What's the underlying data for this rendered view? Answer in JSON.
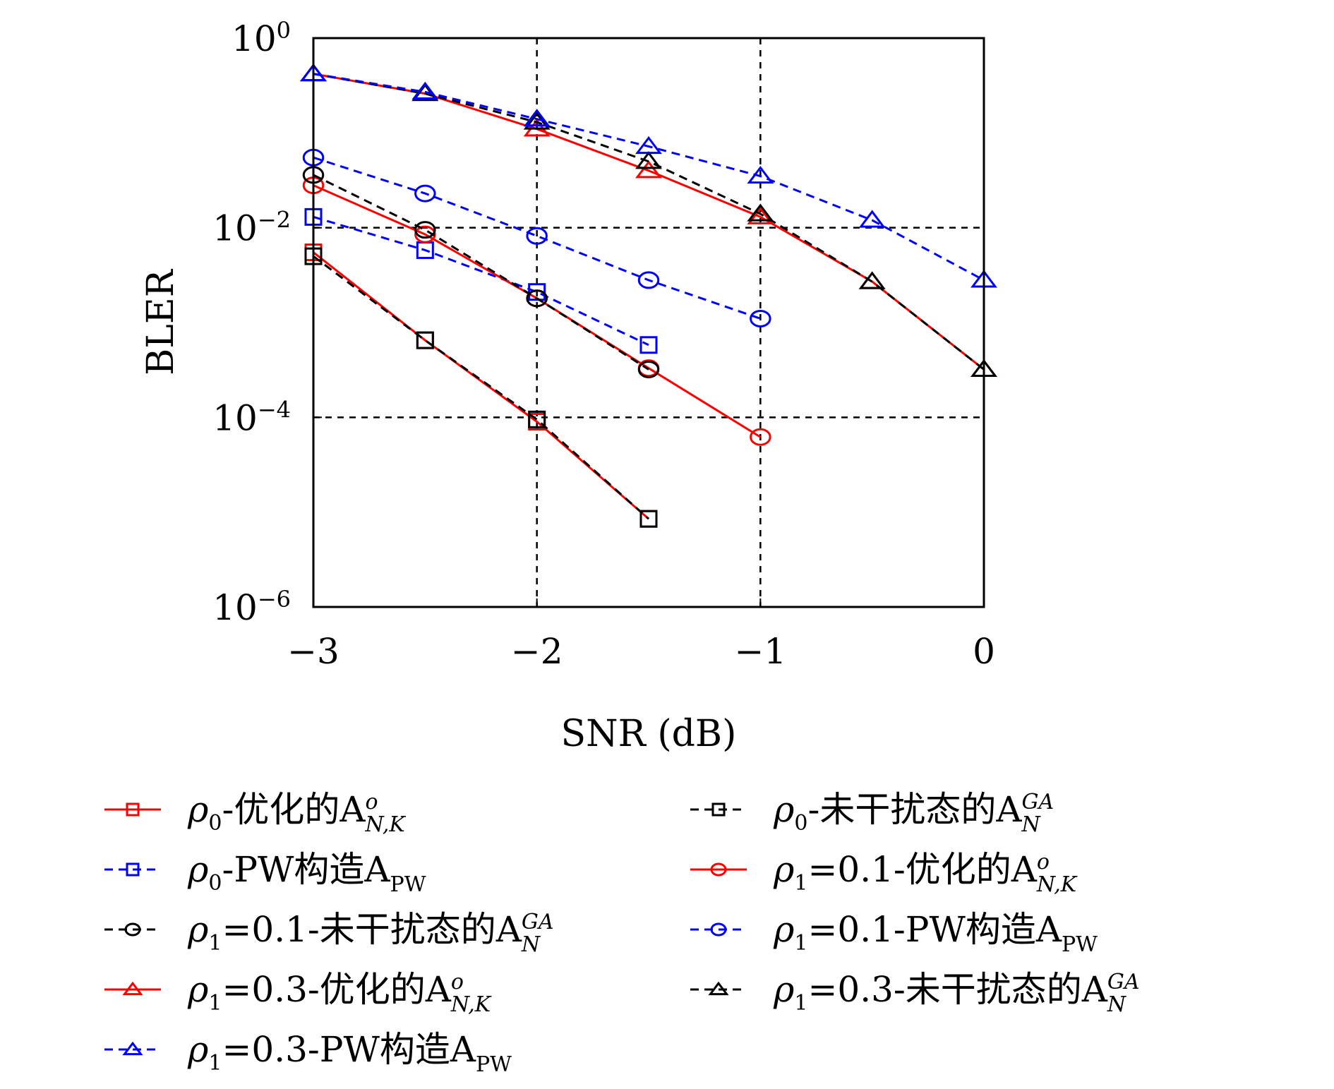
{
  "chart_data": {
    "type": "line",
    "xlabel": "SNR (dB)",
    "ylabel": "BLER",
    "x_scale": "linear",
    "y_scale": "log",
    "xlim": [
      -3,
      0
    ],
    "ylim": [
      1e-06,
      1
    ],
    "x_ticks": [
      {
        "value": -3,
        "label": "−3"
      },
      {
        "value": -2,
        "label": "−2"
      },
      {
        "value": -1,
        "label": "−1"
      },
      {
        "value": 0,
        "label": "0"
      }
    ],
    "y_ticks": [
      {
        "value": 1,
        "base": "10",
        "exp": "0"
      },
      {
        "value": 0.01,
        "base": "10",
        "exp": "−2"
      },
      {
        "value": 0.0001,
        "base": "10",
        "exp": "−4"
      },
      {
        "value": 1e-06,
        "base": "10",
        "exp": "−6"
      }
    ],
    "grid": {
      "x": [
        -2,
        -1
      ],
      "y": [
        0.01,
        0.0001
      ],
      "style": "dashed"
    },
    "legend_position": "below",
    "series": [
      {
        "key": "s1",
        "color": "#ff0000",
        "dash": false,
        "marker": "square",
        "label": {
          "main": "ρ",
          "sub0": "0",
          "rest": "-优化的A",
          "sup": "o",
          "sub": "N,K"
        },
        "x": [
          -3,
          -2.5,
          -2,
          -1.5
        ],
        "y": [
          0.0055,
          0.00065,
          9e-05,
          8.5e-06
        ]
      },
      {
        "key": "s2",
        "color": "#000000",
        "dash": true,
        "marker": "square",
        "label": {
          "main": "ρ",
          "sub0": "0",
          "rest": "-未干扰态的A",
          "sup": "GA",
          "sub": "N"
        },
        "x": [
          -3,
          -2.5,
          -2,
          -1.5
        ],
        "y": [
          0.005,
          0.00065,
          9.5e-05,
          8.5e-06
        ]
      },
      {
        "key": "s3",
        "color": "#0000ff",
        "dash": true,
        "marker": "square",
        "label": {
          "main": "ρ",
          "sub0": "0",
          "rest": "-PW构造A",
          "sup": "",
          "sub": "PW"
        },
        "x": [
          -3,
          -2.5,
          -2,
          -1.5
        ],
        "y": [
          0.013,
          0.0058,
          0.0021,
          0.00058
        ]
      },
      {
        "key": "s4",
        "color": "#ff0000",
        "dash": false,
        "marker": "circle",
        "label": {
          "main": "ρ",
          "sub0": "1",
          "rest": "=0.1-优化的A",
          "sup": "o",
          "sub": "N,K"
        },
        "x": [
          -3,
          -2.5,
          -2,
          -1.5,
          -1
        ],
        "y": [
          0.028,
          0.0085,
          0.0018,
          0.00033,
          6.2e-05
        ]
      },
      {
        "key": "s5",
        "color": "#000000",
        "dash": true,
        "marker": "circle",
        "label": {
          "main": "ρ",
          "sub0": "1",
          "rest": "=0.1-未干扰态的A",
          "sup": "GA",
          "sub": "N"
        },
        "x": [
          -3,
          -2.5,
          -2,
          -1.5
        ],
        "y": [
          0.036,
          0.0095,
          0.0018,
          0.00032
        ]
      },
      {
        "key": "s6",
        "color": "#0000ff",
        "dash": true,
        "marker": "circle",
        "label": {
          "main": "ρ",
          "sub0": "1",
          "rest": "=0.1-PW构造A",
          "sup": "",
          "sub": "PW"
        },
        "x": [
          -3,
          -2.5,
          -2,
          -1.5,
          -1
        ],
        "y": [
          0.055,
          0.023,
          0.0082,
          0.0028,
          0.0011
        ]
      },
      {
        "key": "s7",
        "color": "#ff0000",
        "dash": false,
        "marker": "triangle",
        "label": {
          "main": "ρ",
          "sub0": "1",
          "rest": "=0.3-优化的A",
          "sup": "o",
          "sub": "N,K"
        },
        "x": [
          -3,
          -2.5,
          -2,
          -1.5,
          -1,
          -0.5,
          0
        ],
        "y": [
          0.42,
          0.26,
          0.11,
          0.04,
          0.013,
          0.0027,
          0.00032
        ]
      },
      {
        "key": "s8",
        "color": "#000000",
        "dash": true,
        "marker": "triangle",
        "label": {
          "main": "ρ",
          "sub0": "1",
          "rest": "=0.3-未干扰态的A",
          "sup": "GA",
          "sub": "N"
        },
        "x": [
          -3,
          -2.5,
          -2,
          -1.5,
          -1,
          -0.5,
          0
        ],
        "y": [
          0.42,
          0.26,
          0.13,
          0.05,
          0.014,
          0.0027,
          0.00032
        ]
      },
      {
        "key": "s9",
        "color": "#0000ff",
        "dash": true,
        "marker": "triangle",
        "label": {
          "main": "ρ",
          "sub0": "1",
          "rest": "=0.3-PW构造A",
          "sup": "",
          "sub": "PW"
        },
        "x": [
          -3,
          -2.5,
          -2,
          -1.5,
          -1,
          -0.5,
          0
        ],
        "y": [
          0.42,
          0.27,
          0.14,
          0.072,
          0.035,
          0.012,
          0.0028
        ]
      }
    ],
    "legend_order": [
      "s1",
      "s2",
      "s3",
      "s4",
      "s5",
      "s6",
      "s7",
      "s8",
      "s9"
    ]
  }
}
